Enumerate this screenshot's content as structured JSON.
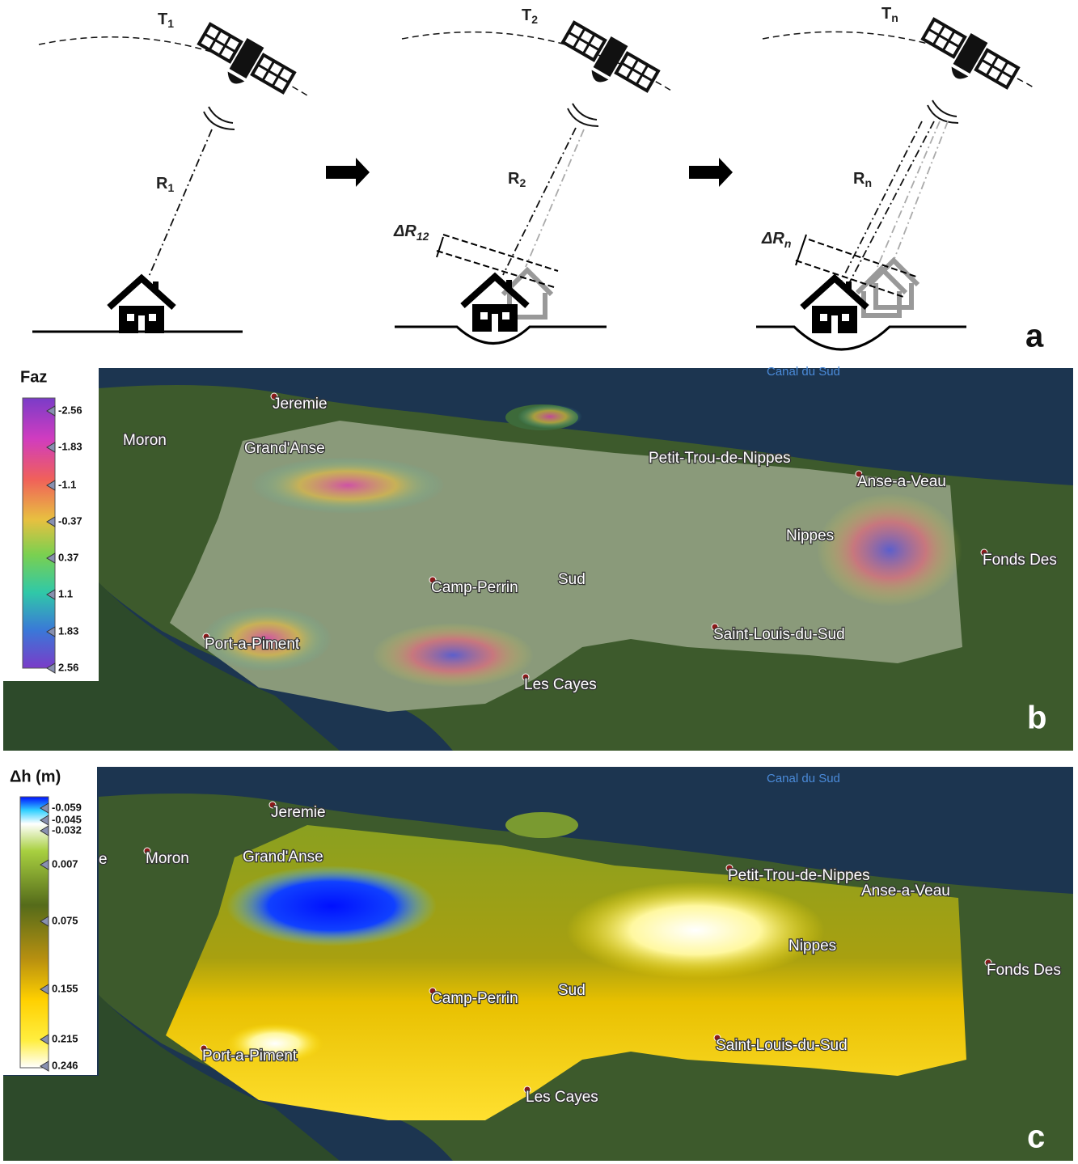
{
  "panel_a": {
    "times": [
      {
        "main": "T",
        "sub": "1"
      },
      {
        "main": "T",
        "sub": "2"
      },
      {
        "main": "T",
        "sub": "n"
      }
    ],
    "ranges": [
      {
        "main": "R",
        "sub": "1"
      },
      {
        "main": "R",
        "sub": "2"
      },
      {
        "main": "R",
        "sub": "n"
      }
    ],
    "deltas": [
      {
        "main": "ΔR",
        "sub": "12"
      },
      {
        "main": "ΔR",
        "sub": "n"
      }
    ],
    "letter": "a"
  },
  "panel_b": {
    "colorbar_title": "Faz",
    "colorbar_ticks": [
      "-2.56",
      "-1.83",
      "-1.1",
      "-0.37",
      "0.37",
      "1.1",
      "1.83",
      "2.56"
    ],
    "places": [
      "Canal du Sud",
      "Jeremie",
      "Moron",
      "Grand'Anse",
      "Petit-Trou-de-Nippes",
      "Anse-a-Veau",
      "Nippes",
      "Fonds Des",
      "Camp-Perrin",
      "Sud",
      "Saint-Louis-du-Sud",
      "Port-a-Piment",
      "Les Cayes"
    ],
    "letter": "b"
  },
  "panel_c": {
    "colorbar_title": "Δh (m)",
    "colorbar_ticks": [
      "-0.059",
      "-0.045",
      "-0.032",
      "0.007",
      "0.075",
      "0.155",
      "0.215",
      "0.246"
    ],
    "places": [
      "Canal du Sud",
      "Jeremie",
      "e",
      "Moron",
      "Grand'Anse",
      "Petit-Trou-de-Nippes",
      "Anse-a-Veau",
      "Nippes",
      "Fonds Des",
      "Camp-Perrin",
      "Sud",
      "Saint-Louis-du-Sud",
      "Port-a-Piment",
      "Les Cayes"
    ],
    "letter": "c"
  }
}
